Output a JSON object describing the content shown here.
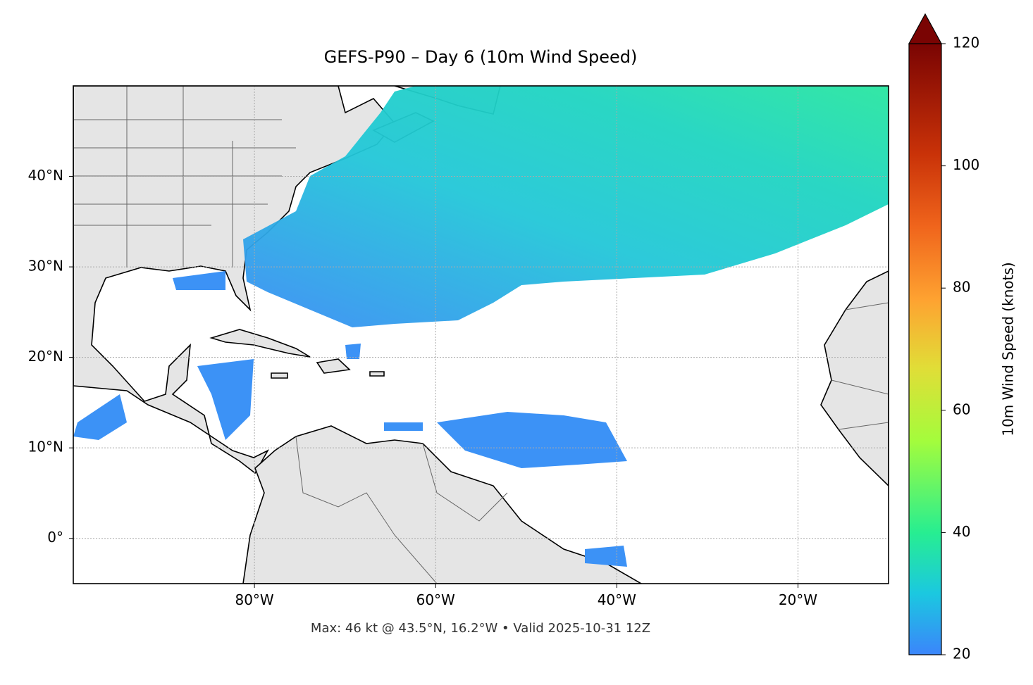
{
  "title": "GEFS-P90 – Day 6 (10m Wind Speed)",
  "map": {
    "xlim": [
      -100,
      -10
    ],
    "ylim": [
      -5,
      50
    ],
    "xticks": [
      {
        "value": -80,
        "label": "80°W"
      },
      {
        "value": -60,
        "label": "60°W"
      },
      {
        "value": -40,
        "label": "40°W"
      },
      {
        "value": -20,
        "label": "20°W"
      }
    ],
    "yticks": [
      {
        "value": 0,
        "label": "0°"
      },
      {
        "value": 10,
        "label": "10°N"
      },
      {
        "value": 20,
        "label": "20°N"
      },
      {
        "value": 30,
        "label": "30°N"
      },
      {
        "value": 40,
        "label": "40°N"
      }
    ],
    "grid": true
  },
  "colorbar": {
    "label": "10m Wind Speed (knots)",
    "lim": [
      20,
      120
    ],
    "ticks": [
      20,
      40,
      60,
      80,
      100,
      120
    ]
  },
  "footer": "Max: 46 kt @ 43.5°N, 16.2°W • Valid 2025-10-31 12Z"
}
